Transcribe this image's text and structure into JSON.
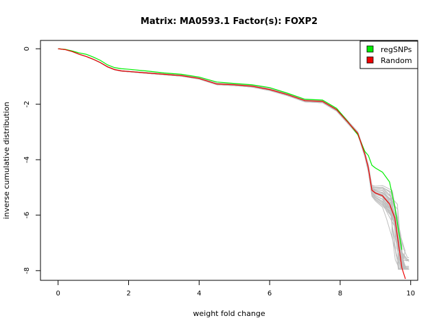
{
  "chart_data": {
    "type": "line",
    "title": "Matrix: MA0593.1 Factor(s): FOXP2",
    "xlabel": "weight fold change",
    "ylabel": "inverse cumulative distribution",
    "xlim": [
      -0.5,
      10.2
    ],
    "ylim": [
      -8.35,
      0.3
    ],
    "x_ticks": [
      0,
      2,
      4,
      6,
      8,
      10
    ],
    "y_ticks": [
      0,
      -2,
      -4,
      -6,
      -8
    ],
    "grid": false,
    "legend": {
      "position": "top-right",
      "entries": [
        {
          "name": "regSNPs",
          "color": "#00ee00"
        },
        {
          "name": "Random",
          "color": "#ee0000"
        }
      ]
    },
    "background_series": {
      "count": 30,
      "color": "#bebebe",
      "description_note": null
    },
    "series": [
      {
        "name": "regSNPs",
        "color": "#00ee00",
        "x": [
          0.0,
          0.2,
          0.4,
          0.6,
          0.8,
          1.0,
          1.2,
          1.4,
          1.6,
          1.8,
          2.0,
          2.5,
          3.0,
          3.5,
          4.0,
          4.5,
          5.0,
          5.5,
          6.0,
          6.5,
          7.0,
          7.5,
          7.9,
          8.2,
          8.5,
          8.7,
          8.8,
          8.9,
          9.0,
          9.2,
          9.4,
          9.55,
          9.65,
          9.75
        ],
        "y": [
          0.0,
          -0.02,
          -0.08,
          -0.15,
          -0.2,
          -0.3,
          -0.42,
          -0.58,
          -0.68,
          -0.72,
          -0.74,
          -0.8,
          -0.87,
          -0.92,
          -1.02,
          -1.2,
          -1.25,
          -1.3,
          -1.4,
          -1.6,
          -1.82,
          -1.85,
          -2.15,
          -2.6,
          -3.1,
          -3.7,
          -3.85,
          -4.2,
          -4.3,
          -4.45,
          -4.8,
          -5.7,
          -6.5,
          -7.25
        ]
      },
      {
        "name": "Random",
        "color": "#ee0000",
        "x": [
          0.0,
          0.2,
          0.4,
          0.6,
          0.8,
          1.0,
          1.2,
          1.4,
          1.6,
          1.8,
          2.0,
          2.5,
          3.0,
          3.5,
          4.0,
          4.5,
          5.0,
          5.5,
          6.0,
          6.5,
          7.0,
          7.5,
          7.9,
          8.2,
          8.5,
          8.7,
          8.8,
          8.9,
          9.0,
          9.2,
          9.4,
          9.55,
          9.65,
          9.75,
          9.85
        ],
        "y": [
          0.0,
          -0.03,
          -0.1,
          -0.2,
          -0.28,
          -0.38,
          -0.5,
          -0.65,
          -0.75,
          -0.8,
          -0.82,
          -0.87,
          -0.92,
          -0.97,
          -1.07,
          -1.27,
          -1.3,
          -1.35,
          -1.47,
          -1.65,
          -1.87,
          -1.9,
          -2.2,
          -2.62,
          -3.05,
          -3.8,
          -4.3,
          -5.1,
          -5.2,
          -5.3,
          -5.6,
          -6.1,
          -7.0,
          -7.9,
          -8.3
        ]
      }
    ]
  }
}
